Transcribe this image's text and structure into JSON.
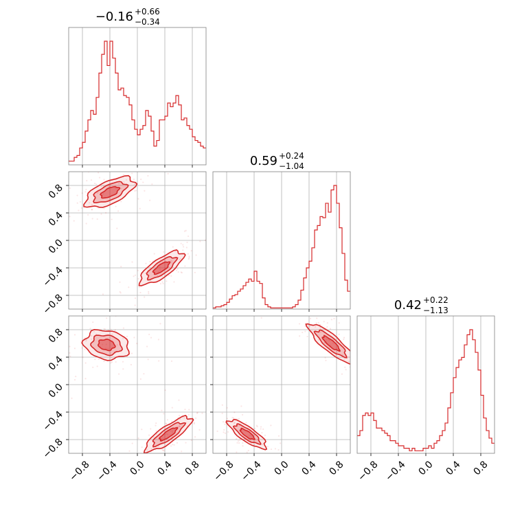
{
  "chart_data": {
    "type": "corner",
    "color": "#d62728",
    "panels": [
      {
        "id": "hist-0",
        "type": "histogram",
        "title": {
          "median": "−0.16",
          "plus": "+0.66",
          "minus": "−0.34"
        },
        "xlim": [
          -1.0,
          1.0
        ],
        "bin_edges_start": -1.0,
        "bin_width": 0.04,
        "counts": [
          0.02,
          0.02,
          0.04,
          0.05,
          0.09,
          0.12,
          0.18,
          0.24,
          0.29,
          0.27,
          0.36,
          0.49,
          0.59,
          0.66,
          0.53,
          0.66,
          0.57,
          0.49,
          0.4,
          0.41,
          0.37,
          0.36,
          0.32,
          0.24,
          0.19,
          0.16,
          0.19,
          0.21,
          0.29,
          0.26,
          0.18,
          0.1,
          0.13,
          0.24,
          0.24,
          0.26,
          0.33,
          0.31,
          0.33,
          0.37,
          0.32,
          0.24,
          0.25,
          0.21,
          0.19,
          0.15,
          0.13,
          0.12,
          0.1,
          0.09
        ]
      },
      {
        "id": "hist-1",
        "type": "histogram",
        "title": {
          "median": "0.59",
          "plus": "+0.24",
          "minus": "−1.04"
        },
        "xlim": [
          -1.0,
          1.0
        ],
        "bin_edges_start": -1.0,
        "bin_width": 0.04,
        "counts": [
          0.01,
          0.02,
          0.02,
          0.03,
          0.04,
          0.06,
          0.09,
          0.12,
          0.13,
          0.16,
          0.18,
          0.21,
          0.24,
          0.27,
          0.25,
          0.34,
          0.25,
          0.23,
          0.1,
          0.04,
          0.02,
          0.01,
          0.01,
          0.01,
          0.01,
          0.01,
          0.01,
          0.01,
          0.01,
          0.02,
          0.04,
          0.08,
          0.17,
          0.28,
          0.37,
          0.43,
          0.55,
          0.71,
          0.75,
          0.83,
          0.82,
          0.95,
          0.87,
          1.07,
          1.11,
          0.95,
          0.73,
          0.5,
          0.26,
          0.16
        ]
      },
      {
        "id": "hist-2",
        "type": "histogram",
        "title": {
          "median": "0.42",
          "plus": "+0.22",
          "minus": "−1.13"
        },
        "xlim": [
          -1.0,
          1.0
        ],
        "bin_edges_start": -1.0,
        "bin_width": 0.04,
        "counts": [
          0.07,
          0.09,
          0.15,
          0.16,
          0.15,
          0.16,
          0.13,
          0.1,
          0.1,
          0.09,
          0.08,
          0.07,
          0.05,
          0.05,
          0.04,
          0.03,
          0.03,
          0.02,
          0.02,
          0.01,
          0.02,
          0.01,
          0.01,
          0.01,
          0.02,
          0.02,
          0.03,
          0.02,
          0.04,
          0.05,
          0.07,
          0.09,
          0.12,
          0.18,
          0.24,
          0.3,
          0.34,
          0.37,
          0.38,
          0.43,
          0.47,
          0.49,
          0.45,
          0.4,
          0.33,
          0.23,
          0.14,
          0.09,
          0.06,
          0.04
        ]
      },
      {
        "id": "pair-1-0",
        "type": "contour",
        "xlim": [
          -1.0,
          1.0
        ],
        "ylim": [
          -1.0,
          1.0
        ],
        "clusters": [
          {
            "cx": -0.4,
            "cy": 0.7,
            "rx": 0.26,
            "ry": 0.11,
            "angle": 25
          },
          {
            "cx": 0.35,
            "cy": -0.4,
            "rx": 0.25,
            "ry": 0.09,
            "angle": 35
          }
        ]
      },
      {
        "id": "pair-2-0",
        "type": "contour",
        "xlim": [
          -1.0,
          1.0
        ],
        "ylim": [
          -1.0,
          1.0
        ],
        "clusters": [
          {
            "cx": -0.45,
            "cy": 0.58,
            "rx": 0.22,
            "ry": 0.14,
            "angle": -10
          },
          {
            "cx": 0.45,
            "cy": -0.72,
            "rx": 0.27,
            "ry": 0.08,
            "angle": 35
          }
        ]
      },
      {
        "id": "pair-2-1",
        "type": "contour",
        "xlim": [
          -1.0,
          1.0
        ],
        "ylim": [
          -1.0,
          1.0
        ],
        "clusters": [
          {
            "cx": 0.72,
            "cy": 0.6,
            "rx": 0.28,
            "ry": 0.08,
            "angle": -40
          },
          {
            "cx": -0.5,
            "cy": -0.72,
            "rx": 0.22,
            "ry": 0.07,
            "angle": -35
          }
        ]
      }
    ],
    "x_tick_values": [
      -0.8,
      -0.4,
      0.0,
      0.4,
      0.8
    ],
    "x_tick_labels": [
      "−0.8",
      "−0.4",
      "0.0",
      "0.4",
      "0.8"
    ],
    "y_tick_values": [
      0.8,
      0.4,
      0.0,
      -0.4,
      -0.8
    ],
    "y_tick_labels": [
      "0.8",
      "0.4",
      "0.0",
      "−0.4",
      "−0.8"
    ],
    "grid": true
  }
}
